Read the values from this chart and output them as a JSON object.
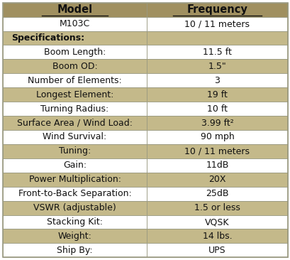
{
  "title_row": [
    "Model",
    "Frequency"
  ],
  "rows": [
    {
      "label": "M103C",
      "value": "10 / 11 meters",
      "is_section": false,
      "bg": "white"
    },
    {
      "label": "Specifications:",
      "value": "",
      "is_section": true,
      "bg": "tan"
    },
    {
      "label": "Boom Length:",
      "value": "11.5 ft",
      "is_section": false,
      "bg": "white"
    },
    {
      "label": "Boom OD:",
      "value": "1.5\"",
      "is_section": false,
      "bg": "tan"
    },
    {
      "label": "Number of Elements:",
      "value": "3",
      "is_section": false,
      "bg": "white"
    },
    {
      "label": "Longest Element:",
      "value": "19 ft",
      "is_section": false,
      "bg": "tan"
    },
    {
      "label": "Turning Radius:",
      "value": "10 ft",
      "is_section": false,
      "bg": "white"
    },
    {
      "label": "Surface Area / Wind Load:",
      "value": "3.99 ft²",
      "is_section": false,
      "bg": "tan"
    },
    {
      "label": "Wind Survival:",
      "value": "90 mph",
      "is_section": false,
      "bg": "white"
    },
    {
      "label": "Tuning:",
      "value": "10 / 11 meters",
      "is_section": false,
      "bg": "tan"
    },
    {
      "label": "Gain:",
      "value": "11dB",
      "is_section": false,
      "bg": "white"
    },
    {
      "label": "Power Multiplication:",
      "value": "20X",
      "is_section": false,
      "bg": "tan"
    },
    {
      "label": "Front-to-Back Separation:",
      "value": "25dB",
      "is_section": false,
      "bg": "white"
    },
    {
      "label": "VSWR (adjustable)",
      "value": "1.5 or less",
      "is_section": false,
      "bg": "tan"
    },
    {
      "label": "Stacking Kit:",
      "value": "VQSK",
      "is_section": false,
      "bg": "white"
    },
    {
      "label": "Weight:",
      "value": "14 lbs.",
      "is_section": false,
      "bg": "tan"
    },
    {
      "label": "Ship By:",
      "value": "UPS",
      "is_section": false,
      "bg": "white"
    }
  ],
  "header_bg": "#A09060",
  "tan_bg": "#C4B98A",
  "white_bg": "#FFFFFF",
  "border_color": "#999980",
  "col_split": 0.505,
  "fig_w": 4.1,
  "fig_h": 3.66,
  "dpi": 100,
  "fontsize": 9.0,
  "header_fontsize": 10.5
}
